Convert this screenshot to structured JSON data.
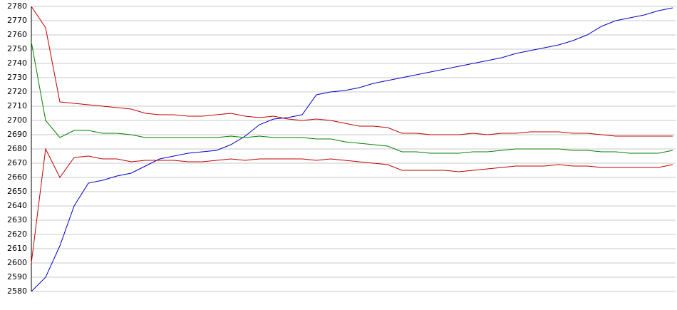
{
  "chart_data": {
    "type": "line",
    "ylim": [
      2580,
      2780
    ],
    "yticks": [
      2580,
      2590,
      2600,
      2610,
      2620,
      2630,
      2640,
      2650,
      2660,
      2670,
      2680,
      2690,
      2700,
      2710,
      2720,
      2730,
      2740,
      2750,
      2760,
      2770,
      2780
    ],
    "grid": true,
    "series": [
      {
        "color": "#0000c0",
        "values": [
          2580,
          2590,
          2612,
          2640,
          2656,
          2658,
          2661,
          2663,
          2668,
          2673,
          2675,
          2677,
          2678,
          2679,
          2683,
          2689,
          2697,
          2701,
          2702,
          2704,
          2718,
          2720,
          2721,
          2723,
          2726,
          2728,
          2730,
          2732,
          2734,
          2736,
          2738,
          2740,
          2742,
          2744,
          2747,
          2749,
          2751,
          2753,
          2756,
          2760,
          2766,
          2770,
          2772,
          2774,
          2777,
          2779
        ]
      },
      {
        "color": "#c00000",
        "values": [
          2780,
          2765,
          2713,
          2712,
          2711,
          2710,
          2709,
          2708,
          2705,
          2704,
          2704,
          2703,
          2703,
          2704,
          2705,
          2703,
          2702,
          2703,
          2701,
          2700,
          2701,
          2700,
          2698,
          2696,
          2696,
          2695,
          2691,
          2691,
          2690,
          2690,
          2690,
          2691,
          2690,
          2691,
          2691,
          2692,
          2692,
          2692,
          2691,
          2691,
          2690,
          2689,
          2689,
          2689,
          2689,
          2689
        ]
      },
      {
        "color": "#008000",
        "values": [
          2755,
          2700,
          2688,
          2693,
          2693,
          2691,
          2691,
          2690,
          2688,
          2688,
          2688,
          2688,
          2688,
          2688,
          2689,
          2688,
          2689,
          2688,
          2688,
          2688,
          2687,
          2687,
          2685,
          2684,
          2683,
          2682,
          2678,
          2678,
          2677,
          2677,
          2677,
          2678,
          2678,
          2679,
          2680,
          2680,
          2680,
          2680,
          2679,
          2679,
          2678,
          2678,
          2677,
          2677,
          2677,
          2679
        ]
      },
      {
        "color": "#c00000",
        "values": [
          2600,
          2680,
          2660,
          2674,
          2675,
          2673,
          2673,
          2671,
          2672,
          2672,
          2672,
          2671,
          2671,
          2672,
          2673,
          2672,
          2673,
          2673,
          2673,
          2673,
          2672,
          2673,
          2672,
          2671,
          2670,
          2669,
          2665,
          2665,
          2665,
          2665,
          2664,
          2665,
          2666,
          2667,
          2668,
          2668,
          2668,
          2669,
          2668,
          2668,
          2667,
          2667,
          2667,
          2667,
          2667,
          2669
        ]
      }
    ]
  }
}
